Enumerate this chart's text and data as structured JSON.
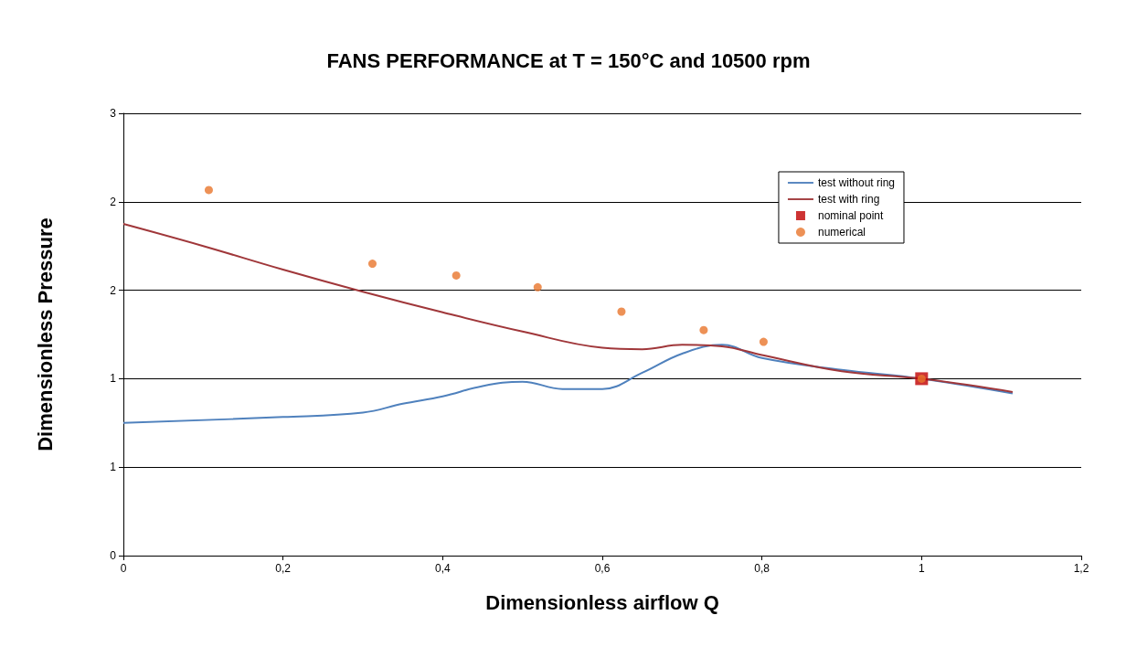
{
  "chart_data": {
    "type": "line",
    "title": "FANS PERFORMANCE at T = 150°C and 10500 rpm",
    "xlabel": "Dimensionless airflow Q",
    "ylabel": "Dimensionless Pressure",
    "xlim": [
      0,
      1.2
    ],
    "xticks": [
      0,
      {
        "value": 0.2,
        "label": "0,2"
      },
      {
        "value": 0.4,
        "label": "0,4"
      },
      {
        "value": 0.6,
        "label": "0,6"
      },
      {
        "value": 0.8,
        "label": "0,8"
      },
      1,
      {
        "value": 1.2,
        "label": "1,2"
      }
    ],
    "ylim": [
      0,
      3
    ],
    "yticks": [
      0,
      {
        "value": 0.6,
        "label": "1"
      },
      {
        "value": 1.2,
        "label": "1"
      },
      {
        "value": 1.8,
        "label": "2"
      },
      {
        "value": 2.4,
        "label": "2"
      },
      3
    ],
    "grid": "y",
    "legend": "top right",
    "marker": "none",
    "series": [
      {
        "name": "test without ring",
        "color": "#4f81bd",
        "x": [
          0,
          0.2,
          0.3,
          0.35,
          0.4,
          0.45,
          0.5,
          0.55,
          0.6,
          0.65,
          0.7,
          0.75,
          0.8,
          0.9,
          1.0,
          1.114
        ],
        "values": [
          0.9,
          0.94,
          0.97,
          1.03,
          1.08,
          1.15,
          1.18,
          1.13,
          1.13,
          1.24,
          1.37,
          1.43,
          1.34,
          1.26,
          1.2,
          1.1
        ]
      },
      {
        "name": "test with ring",
        "color": "#a0373a",
        "x": [
          0,
          0.1,
          0.2,
          0.3,
          0.4,
          0.5,
          0.6,
          0.65,
          0.7,
          0.75,
          0.8,
          0.9,
          1.0,
          1.114
        ],
        "values": [
          2.25,
          2.1,
          1.94,
          1.79,
          1.65,
          1.52,
          1.41,
          1.4,
          1.43,
          1.42,
          1.36,
          1.25,
          1.2,
          1.11
        ]
      },
      {
        "name": "nominal point",
        "type": "scatter",
        "marker": "square",
        "color": "#c00000",
        "x": [
          1.0
        ],
        "values": [
          1.2
        ]
      },
      {
        "name": "numerical",
        "type": "scatter",
        "marker": "circle",
        "color": "#e8762c",
        "x": [
          0.107,
          0.312,
          0.417,
          0.519,
          0.624,
          0.727,
          0.802,
          1.0
        ],
        "values": [
          2.48,
          1.98,
          1.9,
          1.82,
          1.655,
          1.53,
          1.45,
          1.2
        ]
      }
    ]
  }
}
